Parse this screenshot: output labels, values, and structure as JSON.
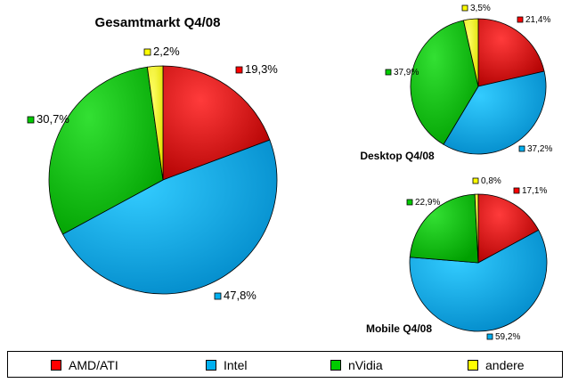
{
  "chart_data": [
    {
      "type": "pie",
      "title": "Gesamtmarkt Q4/08",
      "categories": [
        "AMD/ATI",
        "Intel",
        "nVidia",
        "andere"
      ],
      "values": [
        19.3,
        47.8,
        30.7,
        2.2
      ],
      "labels": [
        "19,3%",
        "47,8%",
        "30,7%",
        "2,2%"
      ]
    },
    {
      "type": "pie",
      "title": "Desktop Q4/08",
      "categories": [
        "AMD/ATI",
        "Intel",
        "nVidia",
        "andere"
      ],
      "values": [
        21.4,
        37.2,
        37.9,
        3.5
      ],
      "labels": [
        "21,4%",
        "37,2%",
        "37,9%",
        "3,5%"
      ]
    },
    {
      "type": "pie",
      "title": "Mobile Q4/08",
      "categories": [
        "AMD/ATI",
        "Intel",
        "nVidia",
        "andere"
      ],
      "values": [
        17.1,
        59.2,
        22.9,
        0.8
      ],
      "labels": [
        "17,1%",
        "59,2%",
        "22,9%",
        "0,8%"
      ]
    }
  ],
  "colors": {
    "AMD/ATI": "#ff0000",
    "Intel": "#00b0f0",
    "nVidia": "#00cc00",
    "andere": "#ffff00"
  },
  "legend": {
    "placement": "bottom",
    "items": [
      {
        "label": "AMD/ATI",
        "color": "#ff0000"
      },
      {
        "label": "Intel",
        "color": "#00b0f0"
      },
      {
        "label": "nVidia",
        "color": "#00cc00"
      },
      {
        "label": "andere",
        "color": "#ffff00"
      }
    ]
  }
}
